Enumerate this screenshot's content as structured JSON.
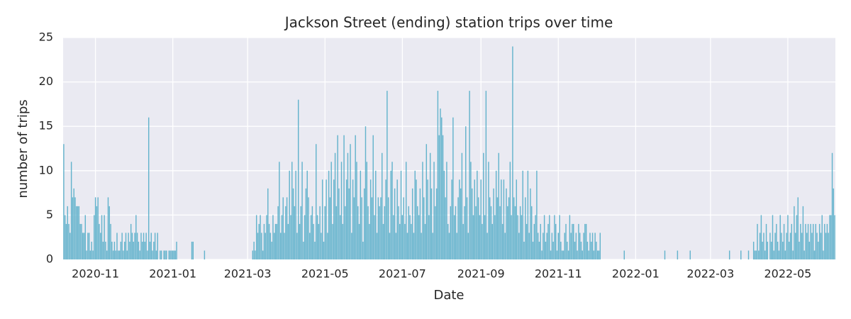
{
  "chart_data": {
    "type": "bar",
    "title": "Jackson Street (ending) station trips over time",
    "xlabel": "Date",
    "ylabel": "number of trips",
    "color": "#63b3cc",
    "background": "#eaeaf2",
    "grid": true,
    "ylim": [
      0,
      25
    ],
    "yticks": [
      0,
      5,
      10,
      15,
      20,
      25
    ],
    "categories": [
      null,
      null,
      null,
      null,
      null,
      null,
      null,
      null,
      null,
      null,
      null,
      null,
      null,
      null,
      null,
      null,
      null,
      null,
      null,
      null,
      null,
      null,
      null,
      null,
      null,
      "2020-11",
      null,
      null,
      null,
      null,
      null,
      null,
      null,
      null,
      null,
      null,
      null,
      null,
      null,
      null,
      null,
      null,
      null,
      null,
      null,
      null,
      null,
      null,
      null,
      null,
      null,
      null,
      null,
      null,
      null,
      null,
      null,
      null,
      null,
      null,
      null,
      null,
      null,
      null,
      null,
      null,
      null,
      null,
      null,
      null,
      null,
      null,
      null,
      null,
      null,
      null,
      null,
      null,
      null,
      null,
      null,
      null,
      null,
      null,
      null,
      null,
      "2021-01",
      null,
      null,
      null,
      null,
      null,
      null,
      null,
      null,
      null,
      null,
      null,
      null,
      null,
      null,
      null,
      null,
      null,
      null,
      null,
      null,
      null,
      null,
      null,
      null,
      null,
      null,
      null,
      null,
      null,
      null,
      null,
      null,
      null,
      null,
      null,
      null,
      null,
      null,
      null,
      null,
      null,
      null,
      null,
      null,
      null,
      null,
      null,
      null,
      null,
      null,
      null,
      null,
      null,
      null,
      null,
      null,
      null,
      null,
      "2021-03",
      null,
      null,
      null,
      null,
      null,
      null,
      null,
      null,
      null,
      null,
      null,
      null,
      null,
      null,
      null,
      null,
      null,
      null,
      null,
      null,
      null,
      null,
      null,
      null,
      null,
      null,
      null,
      null,
      null,
      null,
      null,
      null,
      null,
      null,
      null,
      null,
      null,
      null,
      null,
      null,
      null,
      null,
      null,
      null,
      null,
      null,
      null,
      null,
      null,
      null,
      null,
      null,
      null,
      null,
      null,
      null,
      null,
      null,
      null,
      null,
      "2021-05",
      null,
      null,
      null,
      null,
      null,
      null,
      null,
      null,
      null,
      null,
      null,
      null,
      null,
      null,
      null,
      null,
      null,
      null,
      null,
      null,
      null,
      null,
      null,
      null,
      null,
      null,
      null,
      null,
      null,
      null,
      null,
      null,
      null,
      null,
      null,
      null,
      null,
      null,
      null,
      null,
      null,
      null,
      null,
      null,
      null,
      null,
      null,
      null,
      null,
      null,
      null,
      null,
      null,
      null,
      null,
      null,
      null,
      null,
      null,
      null,
      "2021-07",
      null,
      null,
      null,
      null,
      null,
      null,
      null,
      null,
      null,
      null,
      null,
      null,
      null,
      null,
      null,
      null,
      null,
      null,
      null,
      null,
      null,
      null,
      null,
      null,
      null,
      null,
      null,
      null,
      null,
      null,
      null,
      null,
      null,
      null,
      null,
      null,
      null,
      null,
      null,
      null,
      null,
      null,
      null,
      null,
      null,
      null,
      null,
      null,
      null,
      null,
      null,
      null,
      null,
      null,
      null,
      null,
      null,
      null,
      null,
      null,
      null,
      "2021-09",
      null,
      null,
      null,
      null,
      null,
      null,
      null,
      null,
      null,
      null,
      null,
      null,
      null,
      null,
      null,
      null,
      null,
      null,
      null,
      null,
      null,
      null,
      null,
      null,
      null,
      null,
      null,
      null,
      null,
      null,
      null,
      null,
      null,
      null,
      null,
      null,
      null,
      null,
      null,
      null,
      null,
      null,
      null,
      null,
      null,
      null,
      null,
      null,
      null,
      null,
      null,
      null,
      null,
      null,
      null,
      null,
      null,
      null,
      null,
      null,
      "2021-11",
      null,
      null,
      null,
      null,
      null,
      null,
      null,
      null,
      null,
      null,
      null,
      null,
      null,
      null,
      null,
      null,
      null,
      null,
      null,
      null,
      null,
      null,
      null,
      null,
      null,
      null,
      null,
      null,
      null,
      null,
      null,
      null,
      null,
      null,
      null,
      null,
      null,
      null,
      null,
      null,
      null,
      null,
      null,
      null,
      null,
      null,
      null,
      null,
      null,
      null,
      null,
      null,
      null,
      null,
      null,
      null,
      null,
      null,
      null,
      null,
      "2022-01",
      null,
      null,
      null,
      null,
      null,
      null,
      null,
      null,
      null,
      null,
      null,
      null,
      null,
      null,
      null,
      null,
      null,
      null,
      null,
      null,
      null,
      null,
      null,
      null,
      null,
      null,
      null,
      null,
      null,
      null,
      null,
      null,
      null,
      null,
      null,
      null,
      null,
      null,
      null,
      null,
      null,
      null,
      null,
      null,
      null,
      null,
      null,
      null,
      null,
      null,
      null,
      null,
      null,
      null,
      null,
      null,
      null,
      null,
      "2022-03",
      null,
      null,
      null,
      null,
      null,
      null,
      null,
      null,
      null,
      null,
      null,
      null,
      null,
      null,
      null,
      null,
      null,
      null,
      null,
      null,
      null,
      null,
      null,
      null,
      null,
      null,
      null,
      null,
      null,
      null,
      null,
      null,
      null,
      null,
      null,
      null,
      null,
      null,
      null,
      null,
      null,
      null,
      null,
      null,
      null,
      null,
      null,
      null,
      null,
      null,
      null,
      null,
      null,
      null,
      null,
      null,
      null,
      null,
      null,
      null,
      "2022-05",
      null,
      null,
      null,
      null,
      null,
      null,
      null,
      null,
      null,
      null,
      null,
      null,
      null,
      null,
      null,
      null,
      null,
      null,
      null,
      null,
      null,
      null,
      null,
      null,
      null,
      null,
      null,
      null,
      null,
      null,
      null,
      null,
      null,
      null,
      null,
      null,
      null
    ],
    "values": [
      13,
      5,
      4,
      6,
      4,
      3,
      11,
      7,
      8,
      7,
      6,
      6,
      6,
      4,
      4,
      3,
      3,
      5,
      1,
      3,
      3,
      1,
      2,
      1,
      5,
      7,
      6,
      7,
      4,
      3,
      5,
      2,
      5,
      2,
      1,
      7,
      6,
      4,
      2,
      1,
      2,
      1,
      3,
      1,
      1,
      2,
      3,
      1,
      2,
      3,
      1,
      3,
      2,
      4,
      3,
      2,
      3,
      5,
      3,
      2,
      1,
      3,
      2,
      3,
      2,
      3,
      1,
      16,
      2,
      3,
      1,
      2,
      3,
      1,
      3,
      0,
      1,
      1,
      0,
      1,
      1,
      1,
      0,
      1,
      1,
      1,
      1,
      1,
      1,
      2,
      0,
      0,
      0,
      0,
      0,
      0,
      0,
      0,
      0,
      0,
      0,
      2,
      2,
      0,
      0,
      0,
      0,
      0,
      0,
      0,
      0,
      1,
      0,
      0,
      0,
      0,
      0,
      0,
      0,
      0,
      0,
      0,
      0,
      0,
      0,
      0,
      0,
      0,
      0,
      0,
      0,
      0,
      0,
      0,
      0,
      0,
      0,
      0,
      0,
      0,
      0,
      0,
      0,
      0,
      0,
      0,
      0,
      0,
      0,
      1,
      2,
      1,
      5,
      3,
      4,
      5,
      3,
      1,
      4,
      3,
      5,
      8,
      4,
      3,
      2,
      5,
      3,
      4,
      4,
      6,
      11,
      3,
      5,
      7,
      3,
      6,
      7,
      4,
      10,
      5,
      11,
      8,
      6,
      10,
      3,
      18,
      4,
      6,
      11,
      2,
      5,
      8,
      10,
      7,
      3,
      5,
      6,
      4,
      2,
      13,
      5,
      4,
      6,
      3,
      9,
      2,
      6,
      9,
      3,
      10,
      7,
      11,
      4,
      9,
      12,
      6,
      14,
      8,
      5,
      11,
      4,
      14,
      6,
      9,
      12,
      8,
      13,
      3,
      9,
      7,
      14,
      11,
      6,
      4,
      10,
      7,
      2,
      8,
      15,
      11,
      6,
      4,
      9,
      7,
      14,
      5,
      10,
      3,
      7,
      6,
      7,
      12,
      4,
      6,
      9,
      19,
      7,
      3,
      10,
      11,
      5,
      8,
      3,
      9,
      6,
      4,
      10,
      5,
      7,
      4,
      11,
      3,
      6,
      5,
      4,
      8,
      3,
      10,
      9,
      6,
      5,
      8,
      3,
      11,
      7,
      4,
      13,
      9,
      5,
      12,
      8,
      3,
      11,
      6,
      8,
      19,
      14,
      17,
      16,
      14,
      10,
      7,
      11,
      4,
      3,
      6,
      9,
      16,
      5,
      6,
      3,
      7,
      9,
      8,
      12,
      4,
      6,
      15,
      7,
      3,
      19,
      11,
      8,
      5,
      9,
      6,
      10,
      7,
      5,
      9,
      4,
      12,
      5,
      19,
      3,
      11,
      7,
      6,
      4,
      8,
      5,
      10,
      7,
      12,
      6,
      9,
      4,
      9,
      3,
      8,
      6,
      7,
      11,
      5,
      24,
      7,
      6,
      9,
      5,
      3,
      6,
      5,
      10,
      2,
      7,
      4,
      10,
      3,
      8,
      6,
      2,
      4,
      5,
      10,
      3,
      2,
      4,
      1,
      3,
      5,
      2,
      3,
      4,
      5,
      1,
      3,
      2,
      5,
      4,
      1,
      3,
      5,
      2,
      1,
      1,
      3,
      4,
      2,
      1,
      5,
      3,
      4,
      4,
      2,
      3,
      1,
      4,
      3,
      2,
      1,
      3,
      4,
      4,
      2,
      1,
      3,
      2,
      3,
      1,
      3,
      2,
      1,
      1,
      3,
      0,
      0,
      0,
      0,
      0,
      0,
      0,
      0,
      0,
      0,
      0,
      0,
      0,
      0,
      0,
      0,
      0,
      0,
      1,
      0,
      0,
      0,
      0,
      0,
      0,
      0,
      0,
      0,
      0,
      0,
      0,
      0,
      0,
      0,
      0,
      0,
      0,
      0,
      0,
      0,
      0,
      0,
      0,
      0,
      0,
      0,
      0,
      0,
      0,
      0,
      1,
      0,
      0,
      0,
      0,
      0,
      0,
      0,
      0,
      0,
      1,
      0,
      0,
      0,
      0,
      0,
      0,
      0,
      0,
      0,
      1,
      0,
      0,
      0,
      0,
      0,
      0,
      0,
      0,
      0,
      0,
      0,
      0,
      0,
      0,
      0,
      0,
      0,
      0,
      0,
      0,
      0,
      0,
      0,
      0,
      0,
      0,
      0,
      0,
      0,
      0,
      1,
      0,
      0,
      0,
      0,
      0,
      0,
      0,
      0,
      1,
      0,
      0,
      0,
      0,
      0,
      1,
      0,
      0,
      0,
      2,
      1,
      1,
      4,
      1,
      3,
      5,
      2,
      3,
      1,
      4,
      2,
      0,
      3,
      2,
      5,
      1,
      3,
      4,
      2,
      1,
      5,
      3,
      2,
      4,
      1,
      3,
      5,
      2,
      3,
      4,
      1,
      6,
      3,
      5,
      7,
      2,
      4,
      3,
      6,
      1,
      4,
      3,
      4,
      2,
      4,
      3,
      4,
      1,
      4,
      3,
      2,
      4,
      3,
      5,
      1,
      4,
      3,
      4,
      3,
      5,
      5,
      12,
      8,
      5
    ]
  }
}
